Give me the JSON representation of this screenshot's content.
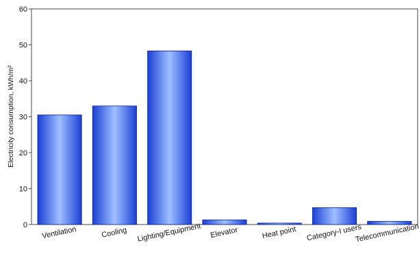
{
  "chart_data": {
    "type": "bar",
    "categories": [
      "Ventilation",
      "Cooling",
      "Lighting/Equipment",
      "Elevator",
      "Heat point",
      "Category-I users",
      "Telecommunications"
    ],
    "values": [
      30.5,
      33.0,
      48.3,
      1.3,
      0.4,
      4.7,
      0.9
    ],
    "ylabel": "Electricity consumption, kWh/m²",
    "xlabel": "",
    "ylim": [
      0,
      60
    ],
    "yticks": [
      0,
      10,
      20,
      30,
      40,
      50,
      60
    ],
    "grid": false,
    "bar_color": "#1a3fd6",
    "bar_highlight": "#9fc0ff",
    "bar_edge": "#0a1f8a"
  }
}
